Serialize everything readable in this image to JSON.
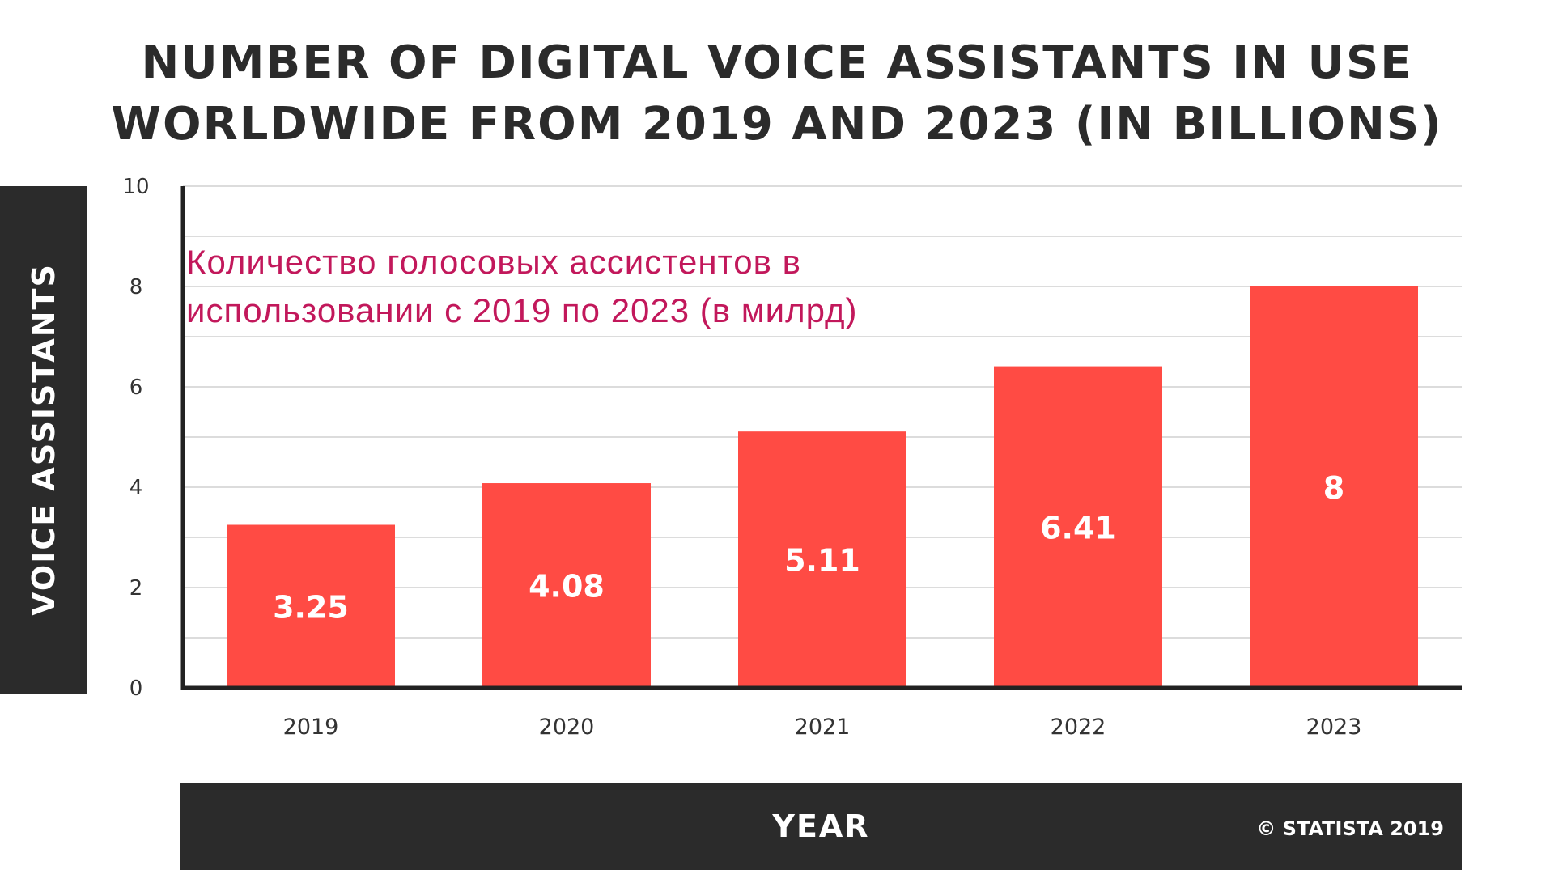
{
  "chart_data": {
    "type": "bar",
    "title": [
      "NUMBER OF DIGITAL VOICE ASSISTANTS IN USE",
      "WORLDWIDE FROM 2019 AND 2023 (IN BILLIONS)"
    ],
    "xlabel": "YEAR",
    "ylabel": "VOICE ASSISTANTS",
    "categories": [
      "2019",
      "2020",
      "2021",
      "2022",
      "2023"
    ],
    "values": [
      3.25,
      4.08,
      5.11,
      6.41,
      8
    ],
    "value_labels": [
      "3.25",
      "4.08",
      "5.11",
      "6.41",
      "8"
    ],
    "ylim": [
      0,
      10
    ],
    "yticks": [
      "0",
      "2",
      "4",
      "6",
      "8",
      "10"
    ],
    "grid": true,
    "bar_color": "#ff4b44",
    "label_color": "#ffffff"
  },
  "annotation": {
    "line1": "Количество голосовых ассистентов в",
    "line2": "использовании с 2019 по 2023 (в милрд)",
    "color": "#c2185b"
  },
  "footer": {
    "credit": "© STATISTA 2019"
  }
}
